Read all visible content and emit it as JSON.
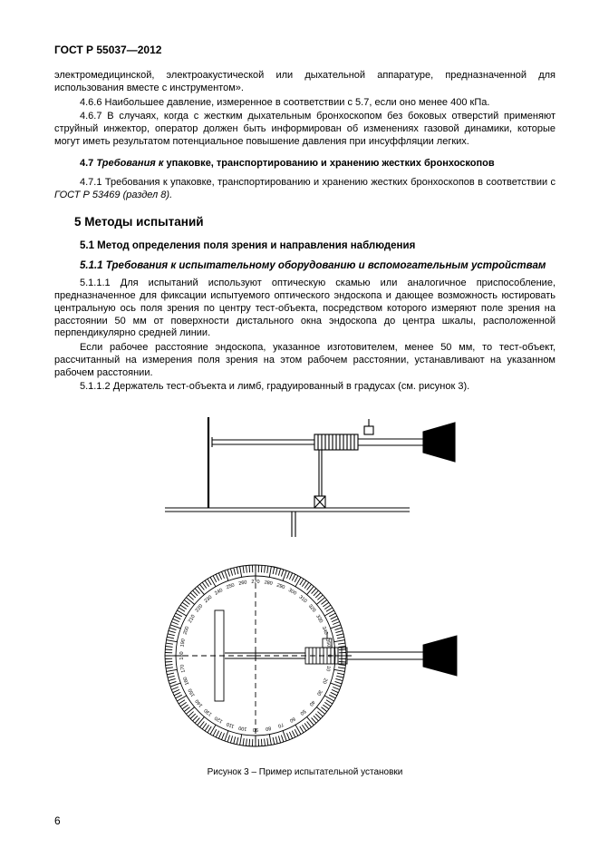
{
  "header": "ГОСТ Р 55037—2012",
  "p1": "электромедицинской, электроакустической или дыхательной аппаратуре, предназначенной для использования вместе с инструментом».",
  "p2": "4.6.6 Наибольшее давление, измеренное в соответствии с 5.7, если оно менее 400 кПа.",
  "p3": "4.6.7 В случаях, когда с жестким дыхательным бронхоскопом без боковых отверстий применяют струйный инжектор, оператор должен быть информирован об изменениях газовой динамики, которые могут иметь результатом потенциальное повышение давления при инсуффляции легких.",
  "s47_num": "4.7 ",
  "s47_ital": "Требования к",
  "s47_rest": " упаковке, транспортированию и хранению жестких бронхоскопов",
  "p4a": "4.7.1 Требования к упаковке, транспортированию и хранению жестких бронхоскопов в соответствии с ",
  "p4b": "ГОСТ Р 53469 (раздел 8).",
  "h5": "5 Методы испытаний",
  "h51": "5.1 Метод определения поля зрения и направления наблюдения",
  "h511": "5.1.1 Требования к испытательному оборудованию и вспомогательным устройствам",
  "p5": "5.1.1.1 Для испытаний используют оптическую скамью или аналогичное приспособление, предназначенное для фиксации испытуемого оптического эндоскопа и дающее возможность юстировать центральную ось поля зрения по центру тест-объекта, посредством которого измеряют поле зрения на расстоянии 50 мм от поверхности дистального окна эндоскопа до центра шкалы, расположенной перпендикулярно средней линии.",
  "p6": "Если рабочее расстояние эндоскопа, указанное изготовителем, менее 50 мм, то тест-объект, рассчитанный на измерения поля зрения на этом рабочем расстоянии, устанавливают на указанном рабочем расстоянии.",
  "p7": "5.1.1.2 Держатель тест-объекта и лимб, градуированный в градусах (см. рисунок 3).",
  "caption": "Рисунок 3 – Пример испытательной установки",
  "pageNum": "6",
  "svg": {
    "stroke": "#000000",
    "strokeThin": 0.9,
    "strokeMed": 1.2,
    "hatchGap": 3
  }
}
